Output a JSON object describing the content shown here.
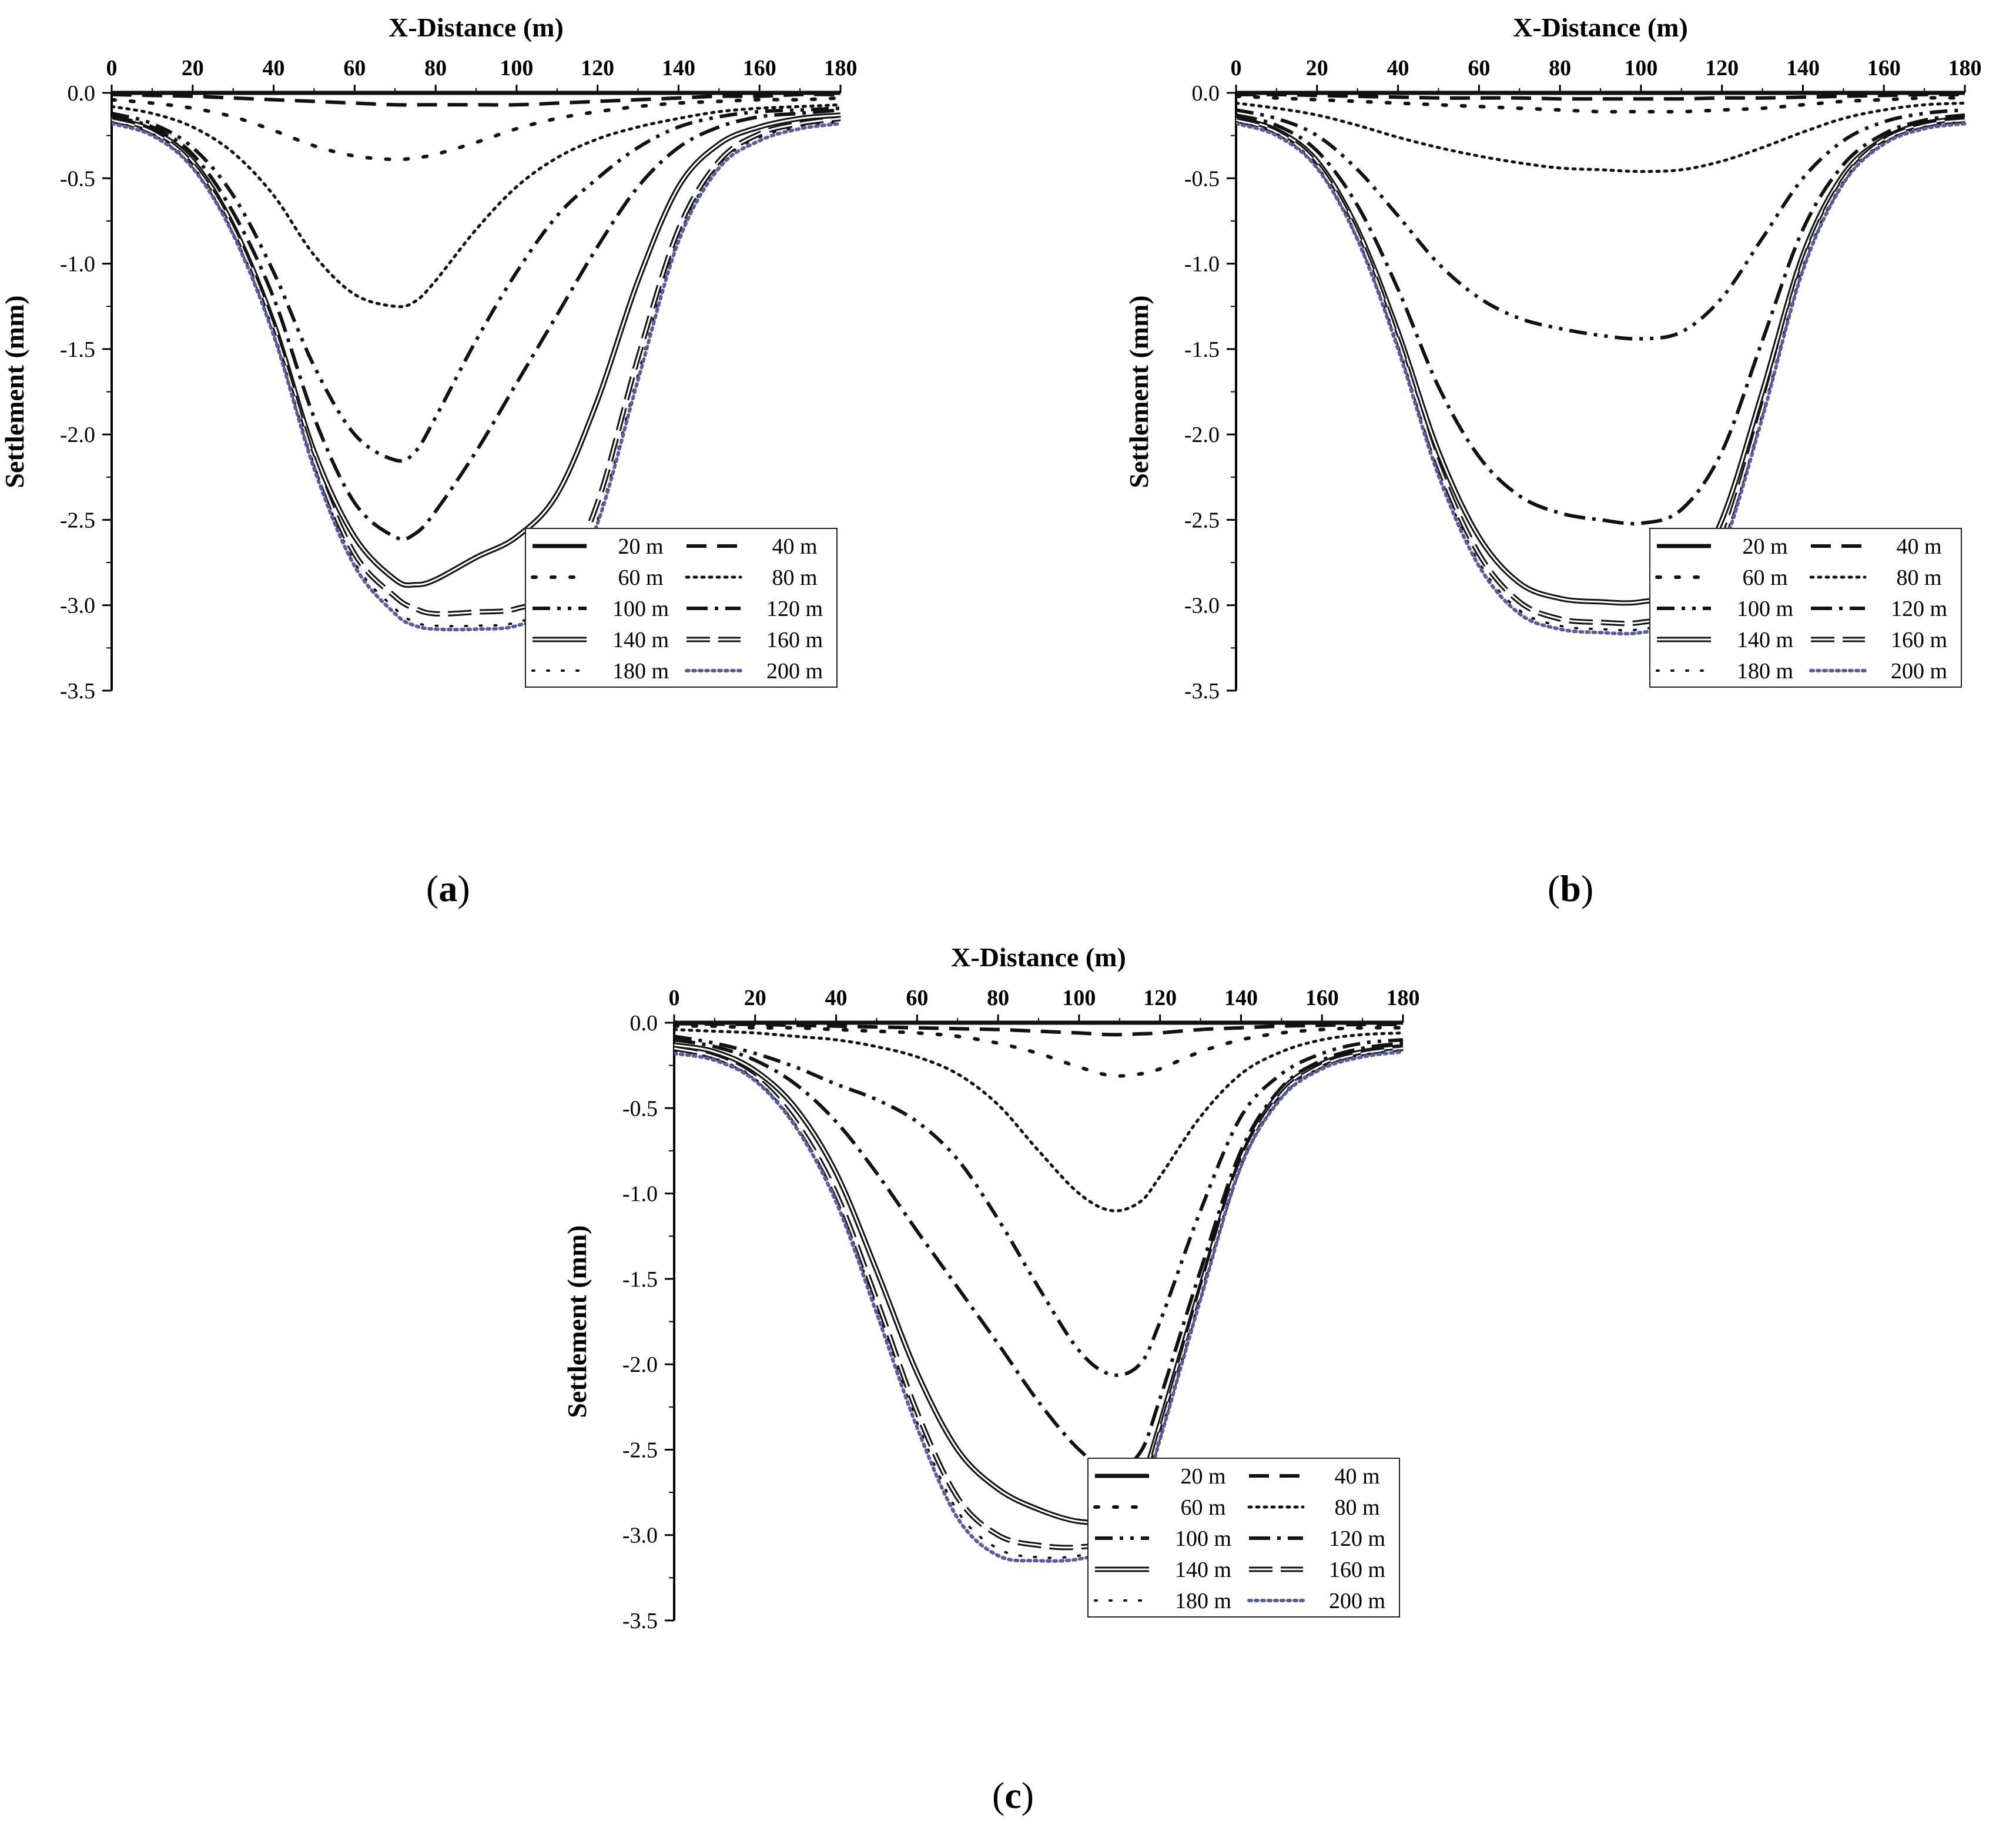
{
  "chart_data": [
    {
      "panel": "(a)",
      "panel_letter": "a",
      "type": "line",
      "title": "",
      "xlabel": "X-Distance (m)",
      "ylabel": "Settlement (mm)",
      "xlim": [
        0,
        180
      ],
      "ylim": [
        -3.5,
        0.0
      ],
      "x_ticks": [
        "0",
        "20",
        "40",
        "60",
        "80",
        "100",
        "120",
        "140",
        "160",
        "180"
      ],
      "y_ticks": [
        "0.0",
        "-0.5",
        "-1.0",
        "-1.5",
        "-2.0",
        "-2.5",
        "-3.0",
        "-3.5"
      ],
      "x_axis_position": "top",
      "legend_position": "bottom-right",
      "grid": false,
      "x": [
        0,
        10,
        20,
        30,
        40,
        50,
        60,
        70,
        75,
        80,
        90,
        100,
        110,
        120,
        130,
        140,
        150,
        160,
        170,
        180
      ],
      "series": [
        {
          "name": "20 m",
          "style": "solid",
          "values": [
            0,
            0,
            0,
            0,
            0,
            0,
            0,
            0,
            0,
            0,
            0,
            0,
            0,
            0,
            0,
            0,
            0,
            0,
            0,
            0
          ]
        },
        {
          "name": "40 m",
          "style": "dash",
          "values": [
            -0.01,
            -0.015,
            -0.02,
            -0.03,
            -0.04,
            -0.05,
            -0.06,
            -0.07,
            -0.07,
            -0.07,
            -0.07,
            -0.07,
            -0.06,
            -0.05,
            -0.04,
            -0.03,
            -0.02,
            -0.02,
            -0.01,
            -0.01
          ]
        },
        {
          "name": "60 m",
          "style": "sparse-dot",
          "values": [
            -0.04,
            -0.06,
            -0.09,
            -0.14,
            -0.22,
            -0.31,
            -0.37,
            -0.39,
            -0.38,
            -0.36,
            -0.29,
            -0.21,
            -0.15,
            -0.11,
            -0.08,
            -0.06,
            -0.05,
            -0.04,
            -0.04,
            -0.03
          ]
        },
        {
          "name": "80 m",
          "style": "dot",
          "values": [
            -0.08,
            -0.12,
            -0.2,
            -0.35,
            -0.6,
            -0.95,
            -1.18,
            -1.25,
            -1.22,
            -1.1,
            -0.8,
            -0.55,
            -0.38,
            -0.27,
            -0.2,
            -0.15,
            -0.11,
            -0.09,
            -0.08,
            -0.07
          ]
        },
        {
          "name": "100 m",
          "style": "dash-dot-dot",
          "values": [
            -0.12,
            -0.18,
            -0.32,
            -0.6,
            -1.05,
            -1.6,
            -2.0,
            -2.15,
            -2.1,
            -1.9,
            -1.45,
            -1.05,
            -0.72,
            -0.5,
            -0.32,
            -0.2,
            -0.14,
            -0.11,
            -0.1,
            -0.09
          ]
        },
        {
          "name": "120 m",
          "style": "dash-dot",
          "values": [
            -0.14,
            -0.2,
            -0.36,
            -0.7,
            -1.2,
            -1.9,
            -2.4,
            -2.6,
            -2.58,
            -2.45,
            -2.1,
            -1.7,
            -1.3,
            -0.9,
            -0.55,
            -0.32,
            -0.2,
            -0.14,
            -0.12,
            -0.1
          ]
        },
        {
          "name": "140 m",
          "style": "double",
          "values": [
            -0.15,
            -0.22,
            -0.4,
            -0.78,
            -1.35,
            -2.1,
            -2.6,
            -2.85,
            -2.88,
            -2.85,
            -2.72,
            -2.6,
            -2.35,
            -1.8,
            -1.1,
            -0.55,
            -0.3,
            -0.2,
            -0.15,
            -0.13
          ]
        },
        {
          "name": "160 m",
          "style": "double-dash",
          "values": [
            -0.16,
            -0.23,
            -0.42,
            -0.8,
            -1.38,
            -2.15,
            -2.7,
            -2.95,
            -3.02,
            -3.05,
            -3.04,
            -3.02,
            -2.9,
            -2.4,
            -1.55,
            -0.8,
            -0.4,
            -0.24,
            -0.18,
            -0.15
          ]
        },
        {
          "name": "180 m",
          "style": "circles",
          "values": [
            -0.17,
            -0.24,
            -0.43,
            -0.82,
            -1.4,
            -2.18,
            -2.75,
            -3.02,
            -3.1,
            -3.12,
            -3.12,
            -3.1,
            -2.98,
            -2.5,
            -1.65,
            -0.85,
            -0.42,
            -0.26,
            -0.2,
            -0.17
          ]
        },
        {
          "name": "200 m",
          "style": "blue-dot",
          "values": [
            -0.18,
            -0.25,
            -0.44,
            -0.83,
            -1.42,
            -2.2,
            -2.77,
            -3.05,
            -3.12,
            -3.14,
            -3.14,
            -3.12,
            -3.0,
            -2.52,
            -1.68,
            -0.87,
            -0.44,
            -0.28,
            -0.21,
            -0.18
          ]
        }
      ]
    },
    {
      "panel": "(b)",
      "panel_letter": "b",
      "type": "line",
      "title": "",
      "xlabel": "X-Distance (m)",
      "ylabel": "Settlement (mm)",
      "xlim": [
        0,
        180
      ],
      "ylim": [
        -3.5,
        0.0
      ],
      "x_ticks": [
        "0",
        "20",
        "40",
        "60",
        "80",
        "100",
        "120",
        "140",
        "160",
        "180"
      ],
      "y_ticks": [
        "0.0",
        "-0.5",
        "-1.0",
        "-1.5",
        "-2.0",
        "-2.5",
        "-3.0",
        "-3.5"
      ],
      "x_axis_position": "top",
      "legend_position": "bottom-right",
      "grid": false,
      "x": [
        0,
        10,
        20,
        30,
        40,
        50,
        60,
        70,
        80,
        90,
        100,
        110,
        120,
        130,
        140,
        150,
        160,
        170,
        180
      ],
      "series": [
        {
          "name": "20 m",
          "style": "solid",
          "values": [
            0,
            0,
            0,
            0,
            0,
            0,
            0,
            0,
            0,
            0,
            0,
            0,
            0,
            0,
            0,
            0,
            0,
            0,
            0
          ]
        },
        {
          "name": "40 m",
          "style": "dash",
          "values": [
            -0.01,
            -0.01,
            -0.015,
            -0.02,
            -0.025,
            -0.03,
            -0.03,
            -0.03,
            -0.035,
            -0.035,
            -0.035,
            -0.035,
            -0.03,
            -0.03,
            -0.025,
            -0.02,
            -0.015,
            -0.01,
            -0.01
          ]
        },
        {
          "name": "60 m",
          "style": "sparse-dot",
          "values": [
            -0.02,
            -0.03,
            -0.04,
            -0.05,
            -0.06,
            -0.07,
            -0.08,
            -0.09,
            -0.1,
            -0.11,
            -0.11,
            -0.11,
            -0.1,
            -0.09,
            -0.07,
            -0.05,
            -0.04,
            -0.03,
            -0.03
          ]
        },
        {
          "name": "80 m",
          "style": "dot",
          "values": [
            -0.06,
            -0.09,
            -0.13,
            -0.19,
            -0.26,
            -0.32,
            -0.37,
            -0.41,
            -0.44,
            -0.45,
            -0.46,
            -0.45,
            -0.4,
            -0.32,
            -0.23,
            -0.15,
            -0.1,
            -0.07,
            -0.06
          ]
        },
        {
          "name": "100 m",
          "style": "dash-dot-dot",
          "values": [
            -0.1,
            -0.15,
            -0.25,
            -0.45,
            -0.72,
            -1.0,
            -1.2,
            -1.32,
            -1.38,
            -1.42,
            -1.44,
            -1.4,
            -1.2,
            -0.85,
            -0.5,
            -0.28,
            -0.17,
            -0.12,
            -0.1
          ]
        },
        {
          "name": "120 m",
          "style": "dash-dot",
          "values": [
            -0.13,
            -0.19,
            -0.34,
            -0.66,
            -1.15,
            -1.72,
            -2.13,
            -2.36,
            -2.46,
            -2.5,
            -2.52,
            -2.44,
            -2.1,
            -1.45,
            -0.8,
            -0.42,
            -0.24,
            -0.16,
            -0.13
          ]
        },
        {
          "name": "140 m",
          "style": "double",
          "values": [
            -0.15,
            -0.22,
            -0.4,
            -0.8,
            -1.4,
            -2.1,
            -2.6,
            -2.87,
            -2.96,
            -2.98,
            -2.98,
            -2.9,
            -2.5,
            -1.75,
            -0.95,
            -0.48,
            -0.27,
            -0.18,
            -0.15
          ]
        },
        {
          "name": "160 m",
          "style": "double-dash",
          "values": [
            -0.16,
            -0.23,
            -0.42,
            -0.83,
            -1.45,
            -2.18,
            -2.7,
            -2.98,
            -3.08,
            -3.1,
            -3.1,
            -3.02,
            -2.62,
            -1.85,
            -1.0,
            -0.51,
            -0.28,
            -0.19,
            -0.16
          ]
        },
        {
          "name": "180 m",
          "style": "circles",
          "values": [
            -0.17,
            -0.24,
            -0.43,
            -0.85,
            -1.48,
            -2.22,
            -2.75,
            -3.03,
            -3.12,
            -3.14,
            -3.14,
            -3.06,
            -2.66,
            -1.88,
            -1.02,
            -0.52,
            -0.29,
            -0.2,
            -0.17
          ]
        },
        {
          "name": "200 m",
          "style": "blue-dot",
          "values": [
            -0.18,
            -0.25,
            -0.44,
            -0.86,
            -1.5,
            -2.24,
            -2.77,
            -3.05,
            -3.14,
            -3.16,
            -3.16,
            -3.08,
            -2.68,
            -1.9,
            -1.04,
            -0.53,
            -0.3,
            -0.21,
            -0.18
          ]
        }
      ]
    },
    {
      "panel": "(c)",
      "panel_letter": "c",
      "type": "line",
      "title": "",
      "xlabel": "X-Distance (m)",
      "ylabel": "Settlement (mm)",
      "xlim": [
        0,
        180
      ],
      "ylim": [
        -3.5,
        0.0
      ],
      "x_ticks": [
        "0",
        "20",
        "40",
        "60",
        "80",
        "100",
        "120",
        "140",
        "160",
        "180"
      ],
      "y_ticks": [
        "0.0",
        "-0.5",
        "-1.0",
        "-1.5",
        "-2.0",
        "-2.5",
        "-3.0",
        "-3.5"
      ],
      "x_axis_position": "top",
      "legend_position": "bottom-right",
      "grid": false,
      "x": [
        0,
        10,
        20,
        30,
        40,
        50,
        60,
        70,
        80,
        90,
        100,
        108,
        115,
        120,
        130,
        140,
        150,
        160,
        170,
        180
      ],
      "series": [
        {
          "name": "20 m",
          "style": "solid",
          "values": [
            0,
            0,
            0,
            0,
            0,
            0,
            0,
            0,
            0,
            0,
            0,
            0,
            0,
            0,
            0,
            0,
            0,
            0,
            0,
            0
          ]
        },
        {
          "name": "40 m",
          "style": "dash",
          "values": [
            -0.005,
            -0.008,
            -0.01,
            -0.015,
            -0.02,
            -0.025,
            -0.03,
            -0.035,
            -0.04,
            -0.05,
            -0.06,
            -0.07,
            -0.065,
            -0.06,
            -0.04,
            -0.03,
            -0.02,
            -0.015,
            -0.01,
            -0.01
          ]
        },
        {
          "name": "60 m",
          "style": "sparse-dot",
          "values": [
            -0.02,
            -0.02,
            -0.03,
            -0.03,
            -0.04,
            -0.05,
            -0.06,
            -0.08,
            -0.12,
            -0.18,
            -0.26,
            -0.31,
            -0.3,
            -0.27,
            -0.17,
            -0.1,
            -0.06,
            -0.04,
            -0.03,
            -0.03
          ]
        },
        {
          "name": "80 m",
          "style": "dot",
          "values": [
            -0.04,
            -0.05,
            -0.06,
            -0.08,
            -0.1,
            -0.14,
            -0.2,
            -0.3,
            -0.48,
            -0.75,
            -1.0,
            -1.1,
            -1.05,
            -0.9,
            -0.55,
            -0.3,
            -0.17,
            -0.1,
            -0.07,
            -0.06
          ]
        },
        {
          "name": "100 m",
          "style": "dash-dot-dot",
          "values": [
            -0.08,
            -0.12,
            -0.18,
            -0.26,
            -0.36,
            -0.45,
            -0.58,
            -0.8,
            -1.15,
            -1.55,
            -1.92,
            -2.06,
            -2.0,
            -1.75,
            -1.1,
            -0.55,
            -0.3,
            -0.18,
            -0.12,
            -0.1
          ]
        },
        {
          "name": "120 m",
          "style": "dash-dot",
          "values": [
            -0.1,
            -0.14,
            -0.22,
            -0.36,
            -0.58,
            -0.88,
            -1.22,
            -1.55,
            -1.88,
            -2.22,
            -2.5,
            -2.62,
            -2.52,
            -2.2,
            -1.45,
            -0.75,
            -0.38,
            -0.22,
            -0.15,
            -0.12
          ]
        },
        {
          "name": "140 m",
          "style": "double",
          "values": [
            -0.13,
            -0.17,
            -0.28,
            -0.5,
            -0.88,
            -1.45,
            -2.05,
            -2.5,
            -2.73,
            -2.85,
            -2.92,
            -2.9,
            -2.7,
            -2.35,
            -1.55,
            -0.8,
            -0.4,
            -0.24,
            -0.17,
            -0.14
          ]
        },
        {
          "name": "160 m",
          "style": "double-dash",
          "values": [
            -0.15,
            -0.2,
            -0.32,
            -0.58,
            -1.0,
            -1.62,
            -2.28,
            -2.78,
            -3.0,
            -3.06,
            -3.07,
            -3.02,
            -2.78,
            -2.4,
            -1.58,
            -0.82,
            -0.42,
            -0.25,
            -0.18,
            -0.15
          ]
        },
        {
          "name": "180 m",
          "style": "circles",
          "values": [
            -0.17,
            -0.21,
            -0.33,
            -0.6,
            -1.03,
            -1.67,
            -2.34,
            -2.86,
            -3.08,
            -3.13,
            -3.12,
            -3.05,
            -2.8,
            -2.42,
            -1.6,
            -0.83,
            -0.43,
            -0.26,
            -0.19,
            -0.16
          ]
        },
        {
          "name": "200 m",
          "style": "blue-dot",
          "values": [
            -0.18,
            -0.22,
            -0.34,
            -0.61,
            -1.05,
            -1.7,
            -2.37,
            -2.9,
            -3.12,
            -3.15,
            -3.14,
            -3.07,
            -2.82,
            -2.44,
            -1.62,
            -0.84,
            -0.44,
            -0.27,
            -0.2,
            -0.17
          ]
        }
      ]
    }
  ],
  "colors": {
    "line": "#111111",
    "blue_dot": "#5b5d99",
    "background": "#ffffff"
  }
}
